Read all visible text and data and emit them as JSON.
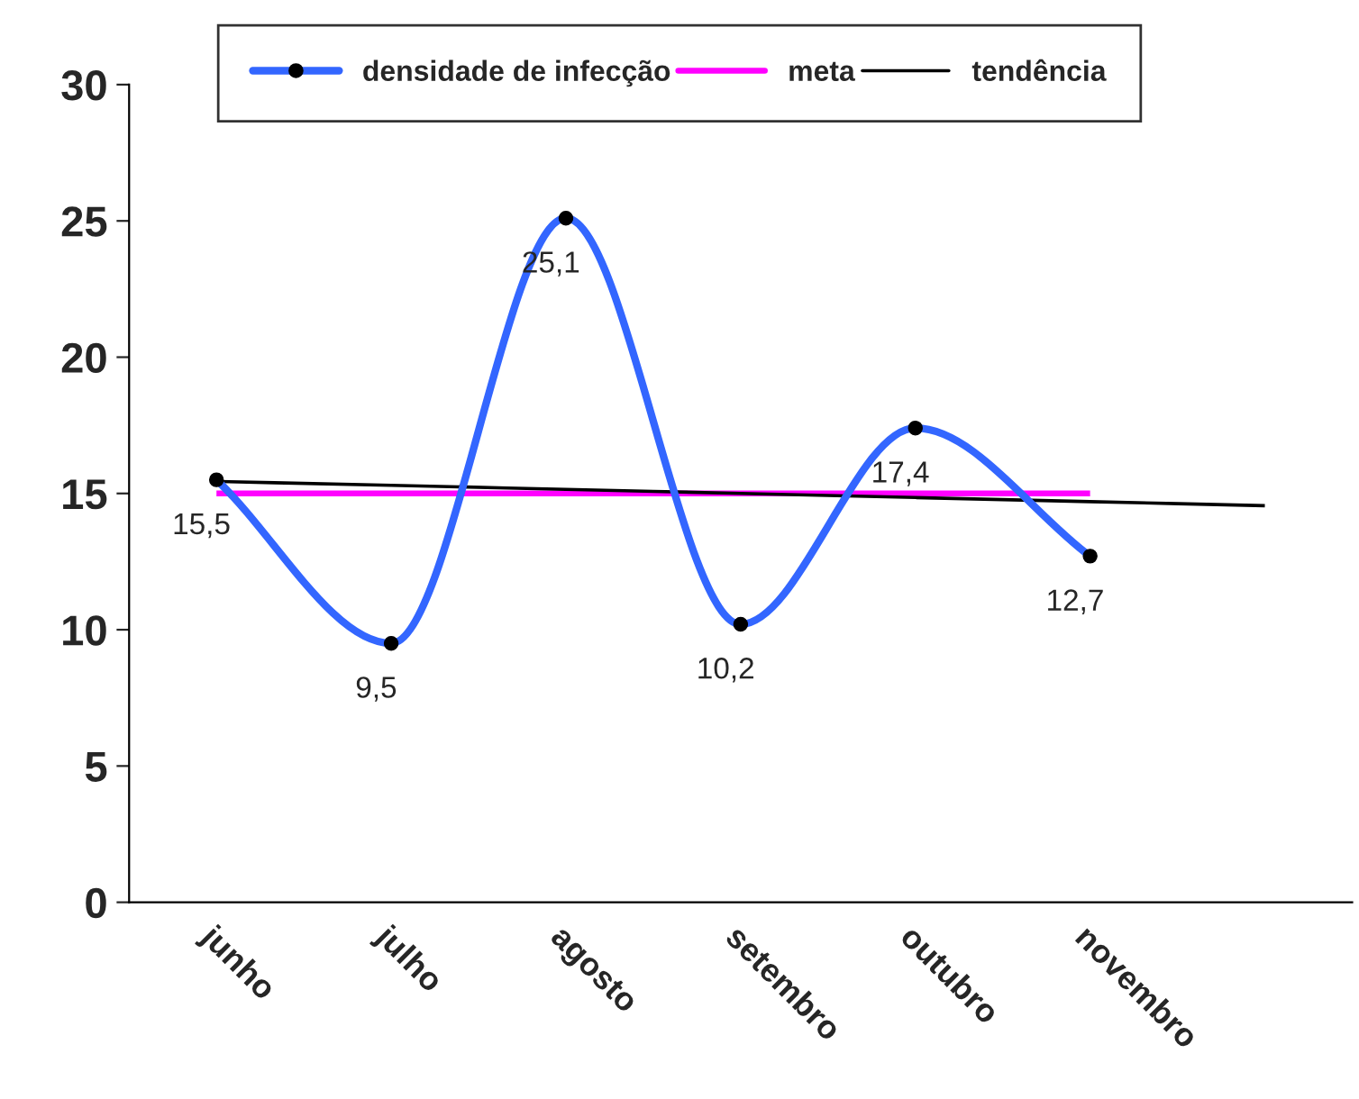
{
  "chart_data": {
    "type": "line",
    "categories": [
      "junho",
      "julho",
      "agosto",
      "setembro",
      "outubro",
      "novembro",
      null
    ],
    "series": [
      {
        "name": "densidade de infecção",
        "color": "#3366ff",
        "marker": "circle",
        "values": [
          15.5,
          9.5,
          25.1,
          10.2,
          17.4,
          12.7,
          null
        ],
        "value_labels": [
          "15,5",
          "9,5",
          "25,1",
          "10,2",
          "17,4",
          "12,7",
          null
        ]
      },
      {
        "name": "meta",
        "color": "#ff00ff",
        "marker": "none",
        "values": [
          15,
          15,
          15,
          15,
          15,
          15,
          null
        ]
      },
      {
        "name": "tendência",
        "color": "#000000",
        "marker": "none",
        "values": [
          15.44,
          15.3,
          15.15,
          15.0,
          14.85,
          14.7,
          14.55
        ]
      }
    ],
    "ylim": [
      0,
      30
    ],
    "yticks": [
      0,
      5,
      10,
      15,
      20,
      25,
      30
    ],
    "grid": false,
    "legend": "top"
  }
}
